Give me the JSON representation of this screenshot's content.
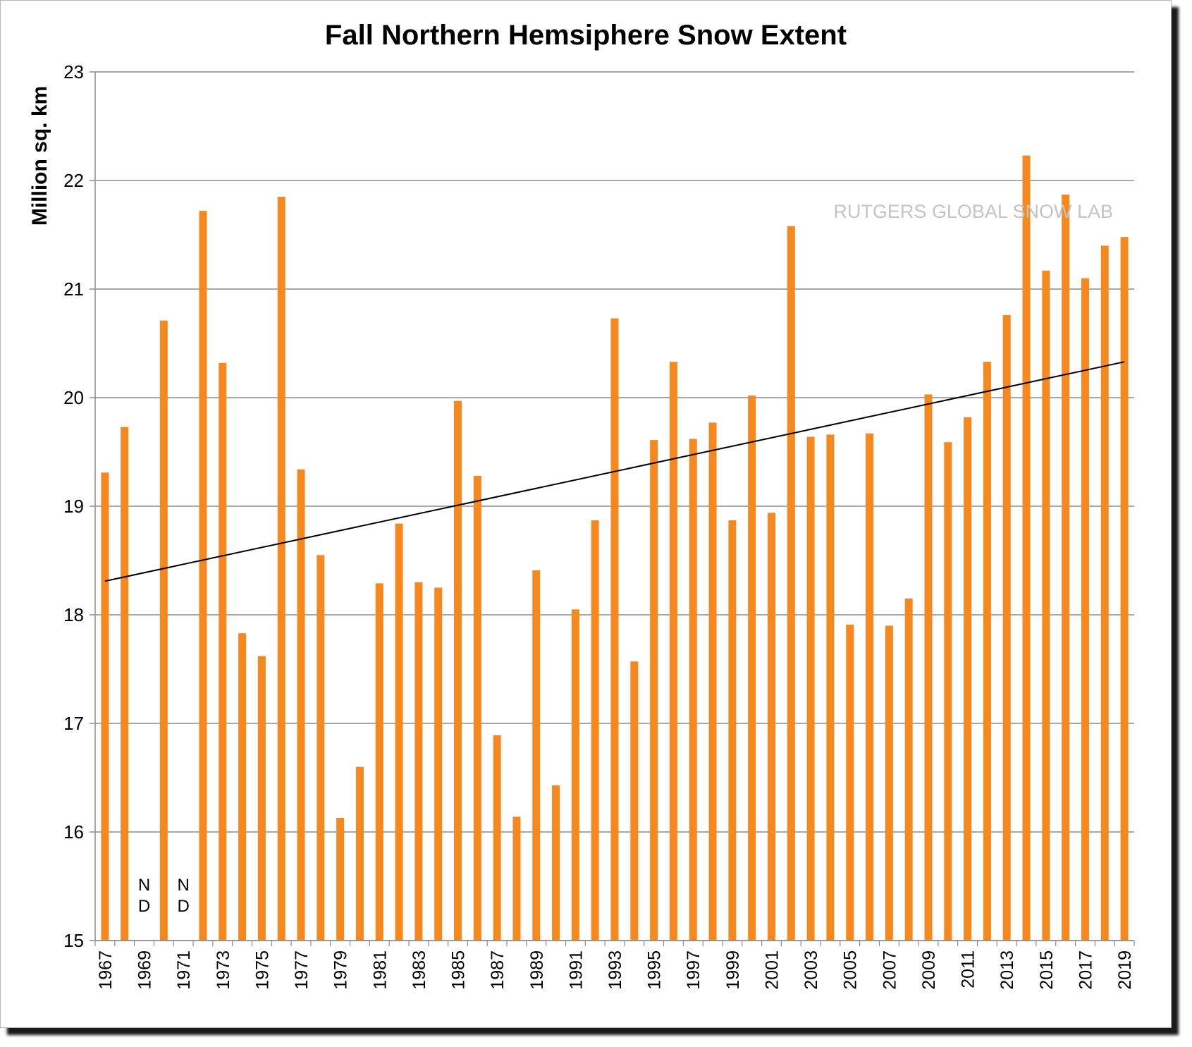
{
  "chart_data": {
    "type": "bar",
    "title": "Fall Northern Hemsiphere Snow Extent",
    "xlabel": "",
    "ylabel": "Million sq. km",
    "ylim": [
      15,
      23
    ],
    "yticks": [
      15,
      16,
      17,
      18,
      19,
      20,
      21,
      22,
      23
    ],
    "grid": true,
    "watermark": "RUTGERS GLOBAL SNOW LAB",
    "bar_color": "#f5891f",
    "trendline": {
      "color": "#000000",
      "start": {
        "x": "1967",
        "y": 18.31
      },
      "end": {
        "x": "2019",
        "y": 20.33
      }
    },
    "no_data_label": [
      "N",
      "D"
    ],
    "categories": [
      "1967",
      "1968",
      "1969",
      "1970",
      "1971",
      "1972",
      "1973",
      "1974",
      "1975",
      "1976",
      "1977",
      "1978",
      "1979",
      "1980",
      "1981",
      "1982",
      "1983",
      "1984",
      "1985",
      "1986",
      "1987",
      "1988",
      "1989",
      "1990",
      "1991",
      "1992",
      "1993",
      "1994",
      "1995",
      "1996",
      "1997",
      "1998",
      "1999",
      "2000",
      "2001",
      "2002",
      "2003",
      "2004",
      "2005",
      "2006",
      "2007",
      "2008",
      "2009",
      "2010",
      "2011",
      "2012",
      "2013",
      "2014",
      "2015",
      "2016",
      "2017",
      "2018",
      "2019"
    ],
    "values": [
      19.31,
      19.73,
      null,
      20.71,
      null,
      21.72,
      20.32,
      17.83,
      17.62,
      21.85,
      19.34,
      18.55,
      16.13,
      16.6,
      18.29,
      18.84,
      18.3,
      18.25,
      19.97,
      19.28,
      16.89,
      16.14,
      18.41,
      16.43,
      18.05,
      18.87,
      20.73,
      17.57,
      19.61,
      20.33,
      19.62,
      19.77,
      18.87,
      20.02,
      18.94,
      21.58,
      19.64,
      19.66,
      17.91,
      19.67,
      17.9,
      18.15,
      20.03,
      19.59,
      19.82,
      20.33,
      20.76,
      22.23,
      21.17,
      21.87,
      21.1,
      21.4,
      21.48
    ],
    "xtick_labels": [
      "1967",
      "1969",
      "1971",
      "1973",
      "1975",
      "1977",
      "1979",
      "1981",
      "1983",
      "1985",
      "1987",
      "1989",
      "1991",
      "1993",
      "1995",
      "1997",
      "1999",
      "2001",
      "2003",
      "2005",
      "2007",
      "2009",
      "2011",
      "2013",
      "2015",
      "2017",
      "2019"
    ]
  }
}
